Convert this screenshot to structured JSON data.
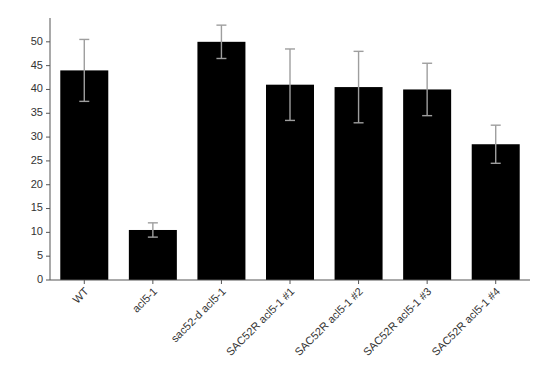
{
  "chart_data": {
    "type": "bar",
    "categories": [
      "WT",
      "acl5-1",
      "sac52-d acl5-1",
      "SAC52R acl5-1 #1",
      "SAC52R acl5-1 #2",
      "SAC52R acl5-1 #3",
      "SAC52R acl5-1 #4"
    ],
    "values": [
      44,
      10.5,
      50,
      41,
      40.5,
      40,
      28.5
    ],
    "errors": [
      6.5,
      1.5,
      3.5,
      7.5,
      7.5,
      5.5,
      4.0
    ],
    "color": "#000000",
    "ylim": [
      0,
      55
    ],
    "yticks": [
      0,
      5,
      10,
      15,
      20,
      25,
      30,
      35,
      40,
      45,
      50
    ],
    "grid": false
  }
}
